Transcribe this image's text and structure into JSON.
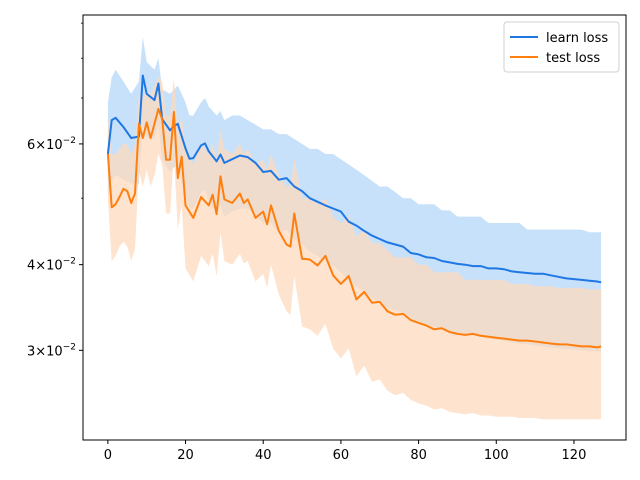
{
  "chart_data": {
    "type": "line",
    "title": "",
    "xlabel": "",
    "ylabel": "",
    "yscale": "log",
    "xlim": [
      -6.4,
      133.4
    ],
    "ylim": [
      0.0222,
      0.0925
    ],
    "xticks": [
      0,
      20,
      40,
      60,
      80,
      100,
      120
    ],
    "xtick_labels": [
      "0",
      "20",
      "40",
      "60",
      "80",
      "100",
      "120"
    ],
    "yticks": [
      0.03,
      0.04,
      0.06
    ],
    "ytick_labels": [
      "3 × 10^-2",
      "4 × 10^-2",
      "6 × 10^-2"
    ],
    "ytick_parts": [
      {
        "mant": "3",
        "exp": "−2"
      },
      {
        "mant": "4",
        "exp": "−2"
      },
      {
        "mant": "6",
        "exp": "−2"
      }
    ],
    "minor_yticks": [
      0.05,
      0.07,
      0.08,
      0.09
    ],
    "grid": false,
    "legend_position": "top-right",
    "series": [
      {
        "name": "learn loss",
        "color": "#1f77e4",
        "band_color": "#c8e1fb",
        "x": [
          0,
          1,
          2,
          4,
          6,
          8,
          9,
          10,
          12,
          13,
          14,
          16,
          17,
          18,
          20,
          21,
          22,
          24,
          25,
          26,
          28,
          29,
          30,
          32,
          34,
          36,
          38,
          40,
          42,
          44,
          46,
          48,
          50,
          52,
          54,
          56,
          58,
          60,
          62,
          64,
          66,
          68,
          70,
          72,
          74,
          76,
          78,
          80,
          82,
          84,
          86,
          88,
          90,
          92,
          94,
          96,
          98,
          100,
          102,
          104,
          106,
          108,
          110,
          112,
          114,
          116,
          118,
          120,
          122,
          124,
          126,
          127
        ],
        "values": [
          0.058,
          0.065,
          0.0655,
          0.0635,
          0.0612,
          0.0615,
          0.0755,
          0.071,
          0.0695,
          0.0735,
          0.0652,
          0.0628,
          0.0637,
          0.0642,
          0.0591,
          0.0571,
          0.0572,
          0.0597,
          0.0601,
          0.0585,
          0.0566,
          0.0579,
          0.0563,
          0.057,
          0.0577,
          0.0574,
          0.0563,
          0.0546,
          0.0548,
          0.0532,
          0.0535,
          0.052,
          0.0512,
          0.05,
          0.0494,
          0.0488,
          0.0483,
          0.0478,
          0.0462,
          0.0456,
          0.0448,
          0.0441,
          0.0436,
          0.0431,
          0.0428,
          0.0425,
          0.0416,
          0.0414,
          0.041,
          0.0409,
          0.0405,
          0.0403,
          0.0401,
          0.04,
          0.0398,
          0.0398,
          0.0395,
          0.0395,
          0.0394,
          0.0391,
          0.039,
          0.0389,
          0.0388,
          0.0388,
          0.0386,
          0.0384,
          0.0382,
          0.0381,
          0.038,
          0.0379,
          0.0378,
          0.0377
        ],
        "upper": [
          0.069,
          0.075,
          0.077,
          0.074,
          0.071,
          0.074,
          0.086,
          0.079,
          0.077,
          0.08,
          0.072,
          0.071,
          0.072,
          0.073,
          0.069,
          0.066,
          0.066,
          0.069,
          0.07,
          0.068,
          0.066,
          0.067,
          0.065,
          0.066,
          0.066,
          0.065,
          0.064,
          0.063,
          0.063,
          0.062,
          0.062,
          0.061,
          0.06,
          0.059,
          0.059,
          0.058,
          0.058,
          0.057,
          0.056,
          0.055,
          0.054,
          0.053,
          0.052,
          0.052,
          0.051,
          0.05,
          0.05,
          0.049,
          0.049,
          0.049,
          0.048,
          0.048,
          0.047,
          0.047,
          0.047,
          0.047,
          0.046,
          0.046,
          0.046,
          0.046,
          0.046,
          0.045,
          0.045,
          0.045,
          0.045,
          0.045,
          0.045,
          0.045,
          0.045,
          0.0446,
          0.0446,
          0.0446
        ],
        "lower": [
          0.0505,
          0.053,
          0.054,
          0.0533,
          0.0525,
          0.0525,
          0.064,
          0.0615,
          0.061,
          0.064,
          0.057,
          0.0545,
          0.0555,
          0.0555,
          0.0505,
          0.0483,
          0.0483,
          0.051,
          0.0515,
          0.0495,
          0.0475,
          0.0488,
          0.047,
          0.0478,
          0.0483,
          0.0483,
          0.0472,
          0.046,
          0.046,
          0.0445,
          0.045,
          0.0435,
          0.0428,
          0.0418,
          0.0412,
          0.0405,
          0.0398,
          0.039,
          0.0378,
          0.0372,
          0.0365,
          0.0358,
          0.0352,
          0.0346,
          0.0343,
          0.034,
          0.0334,
          0.033,
          0.0327,
          0.0325,
          0.0322,
          0.032,
          0.0318,
          0.0316,
          0.0315,
          0.0314,
          0.0312,
          0.0311,
          0.031,
          0.0308,
          0.0307,
          0.0306,
          0.0305,
          0.0304,
          0.0303,
          0.0302,
          0.0301,
          0.0301,
          0.03,
          0.0299,
          0.0299,
          0.0299
        ]
      },
      {
        "name": "test loss",
        "color": "#ff7f0e",
        "band_color": "#fdd9bd",
        "x": [
          0,
          1,
          2,
          3,
          4,
          5,
          6,
          7,
          8,
          9,
          10,
          11,
          12,
          13,
          14,
          15,
          16,
          17,
          18,
          19,
          20,
          22,
          24,
          26,
          27,
          28,
          29,
          30,
          32,
          34,
          35,
          36,
          38,
          40,
          41,
          42,
          44,
          46,
          47,
          48,
          50,
          52,
          54,
          56,
          58,
          60,
          62,
          64,
          66,
          68,
          70,
          72,
          74,
          76,
          78,
          80,
          82,
          84,
          86,
          88,
          90,
          92,
          94,
          96,
          98,
          100,
          102,
          104,
          106,
          108,
          110,
          112,
          114,
          116,
          118,
          120,
          122,
          124,
          126,
          127
        ],
        "values": [
          0.058,
          0.0485,
          0.049,
          0.0502,
          0.0516,
          0.0512,
          0.0492,
          0.0508,
          0.0642,
          0.0612,
          0.0645,
          0.0612,
          0.0642,
          0.0675,
          0.0652,
          0.0569,
          0.0569,
          0.0668,
          0.0535,
          0.0575,
          0.0488,
          0.0468,
          0.0502,
          0.0488,
          0.0506,
          0.0474,
          0.0538,
          0.0498,
          0.0492,
          0.0508,
          0.0492,
          0.0498,
          0.0468,
          0.0478,
          0.0458,
          0.0488,
          0.0448,
          0.0428,
          0.0425,
          0.0475,
          0.0408,
          0.0407,
          0.0399,
          0.0412,
          0.0386,
          0.0375,
          0.0385,
          0.0356,
          0.0365,
          0.0352,
          0.0353,
          0.0342,
          0.0338,
          0.0339,
          0.0332,
          0.0329,
          0.0326,
          0.0322,
          0.0323,
          0.0319,
          0.0317,
          0.0316,
          0.0317,
          0.0315,
          0.0314,
          0.0313,
          0.0312,
          0.0311,
          0.031,
          0.031,
          0.0309,
          0.0308,
          0.0307,
          0.0306,
          0.0306,
          0.0305,
          0.0304,
          0.0304,
          0.0303,
          0.0304
        ],
        "upper": [
          0.066,
          0.058,
          0.058,
          0.059,
          0.06,
          0.06,
          0.058,
          0.06,
          0.071,
          0.07,
          0.072,
          0.071,
          0.073,
          0.075,
          0.074,
          0.066,
          0.066,
          0.075,
          0.062,
          0.066,
          0.059,
          0.056,
          0.06,
          0.058,
          0.06,
          0.057,
          0.063,
          0.059,
          0.058,
          0.06,
          0.058,
          0.059,
          0.056,
          0.057,
          0.055,
          0.058,
          0.054,
          0.052,
          0.052,
          0.057,
          0.05,
          0.05,
          0.049,
          0.05,
          0.047,
          0.046,
          0.047,
          0.044,
          0.045,
          0.043,
          0.043,
          0.042,
          0.041,
          0.041,
          0.041,
          0.04,
          0.04,
          0.039,
          0.039,
          0.039,
          0.039,
          0.038,
          0.038,
          0.038,
          0.038,
          0.038,
          0.038,
          0.0375,
          0.0375,
          0.0375,
          0.0372,
          0.0372,
          0.0372,
          0.037,
          0.037,
          0.037,
          0.037,
          0.0368,
          0.0368,
          0.0368
        ],
        "lower": [
          0.05,
          0.0405,
          0.0412,
          0.0425,
          0.0432,
          0.0425,
          0.0405,
          0.0422,
          0.055,
          0.052,
          0.055,
          0.052,
          0.054,
          0.058,
          0.056,
          0.0475,
          0.0475,
          0.058,
          0.045,
          0.049,
          0.0395,
          0.0378,
          0.0412,
          0.0398,
          0.0415,
          0.0385,
          0.0445,
          0.0405,
          0.04,
          0.0415,
          0.0402,
          0.0405,
          0.0378,
          0.0388,
          0.037,
          0.04,
          0.0362,
          0.0342,
          0.0338,
          0.0385,
          0.0325,
          0.0322,
          0.0315,
          0.0328,
          0.0302,
          0.0292,
          0.0302,
          0.0275,
          0.0285,
          0.027,
          0.0272,
          0.0262,
          0.0258,
          0.026,
          0.0254,
          0.0251,
          0.0249,
          0.0246,
          0.0247,
          0.0244,
          0.0243,
          0.0242,
          0.0243,
          0.0241,
          0.0241,
          0.024,
          0.024,
          0.024,
          0.0239,
          0.0239,
          0.0239,
          0.0238,
          0.0238,
          0.0238,
          0.0238,
          0.0238,
          0.0238,
          0.0238,
          0.0238,
          0.0238
        ]
      }
    ]
  }
}
